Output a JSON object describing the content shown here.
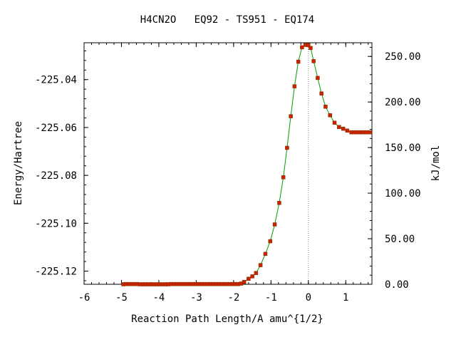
{
  "chart_data": {
    "type": "scatter",
    "title": "H4CN2O   EQ92 - TS951 - EQ174",
    "xlabel": "Reaction Path Length/A amu^{1/2}",
    "ylabel": "Energy/Hartree",
    "y2label": "kJ/mol",
    "xlim": [
      -6,
      1.7
    ],
    "ylim": [
      -225.1255,
      -225.0246
    ],
    "y2lim": [
      0,
      265
    ],
    "xticks": [
      "-6",
      "-5",
      "-4",
      "-3",
      "-2",
      "-1",
      "0",
      "1"
    ],
    "xtick_values": [
      -6,
      -5,
      -4,
      -3,
      -2,
      -1,
      0,
      1
    ],
    "yticks": [
      "-225.04",
      "-225.06",
      "-225.08",
      "-225.10",
      "-225.12"
    ],
    "ytick_values": [
      -225.04,
      -225.06,
      -225.08,
      -225.1,
      -225.12
    ],
    "y2ticks": [
      "0.00",
      "50.00",
      "100.00",
      "150.00",
      "200.00",
      "250.00"
    ],
    "y2tick_values": [
      0,
      50,
      100,
      150,
      200,
      250
    ],
    "ts_marker_x": 0,
    "line_color": "#00a000",
    "marker_color": "#cc2200",
    "grid": false,
    "series": [
      {
        "x": [
          -4.95,
          -4.88,
          -4.8,
          -4.72,
          -4.65,
          -4.58,
          -4.5,
          -4.42,
          -4.35,
          -4.28,
          -4.2,
          -4.12,
          -4.05,
          -3.98,
          -3.9,
          -3.82,
          -3.75,
          -3.68,
          -3.6,
          -3.52,
          -3.45,
          -3.38,
          -3.3,
          -3.22,
          -3.15,
          -3.08,
          -3.0,
          -2.92,
          -2.85,
          -2.78,
          -2.7,
          -2.62,
          -2.55,
          -2.48,
          -2.4,
          -2.32,
          -2.25,
          -2.18,
          -2.1,
          -2.02,
          -1.95,
          -1.88,
          -1.8,
          -1.72,
          -1.6,
          -1.5,
          -1.4,
          -1.28,
          -1.15,
          -1.02,
          -0.9,
          -0.78,
          -0.67,
          -0.57,
          -0.47,
          -0.37,
          -0.27,
          -0.17,
          -0.08,
          0.0,
          0.06,
          0.14,
          0.25,
          0.35,
          0.46,
          0.58,
          0.7,
          0.82,
          0.93,
          1.04,
          1.15,
          1.25,
          1.35,
          1.45,
          1.55,
          1.65
        ],
        "y": [
          -225.1255,
          -225.1254,
          -225.1254,
          -225.1254,
          -225.1254,
          -225.1254,
          -225.1255,
          -225.1255,
          -225.1255,
          -225.1255,
          -225.1255,
          -225.1255,
          -225.1255,
          -225.1255,
          -225.1255,
          -225.1255,
          -225.1255,
          -225.1254,
          -225.1254,
          -225.1254,
          -225.1254,
          -225.1254,
          -225.1254,
          -225.1254,
          -225.1254,
          -225.1254,
          -225.1254,
          -225.1254,
          -225.1254,
          -225.1254,
          -225.1254,
          -225.1254,
          -225.1254,
          -225.1254,
          -225.1254,
          -225.1254,
          -225.1254,
          -225.1254,
          -225.1254,
          -225.1254,
          -225.1254,
          -225.1254,
          -225.1252,
          -225.1245,
          -225.1232,
          -225.1222,
          -225.1208,
          -225.1175,
          -225.1128,
          -225.1075,
          -225.1005,
          -225.0915,
          -225.0808,
          -225.0685,
          -225.0553,
          -225.0428,
          -225.0325,
          -225.0265,
          -225.0255,
          -225.0256,
          -225.0268,
          -225.0323,
          -225.0393,
          -225.0458,
          -225.0513,
          -225.0549,
          -225.058,
          -225.0598,
          -225.0605,
          -225.0613,
          -225.062,
          -225.062,
          -225.062,
          -225.062,
          -225.062,
          -225.062
        ]
      }
    ]
  }
}
